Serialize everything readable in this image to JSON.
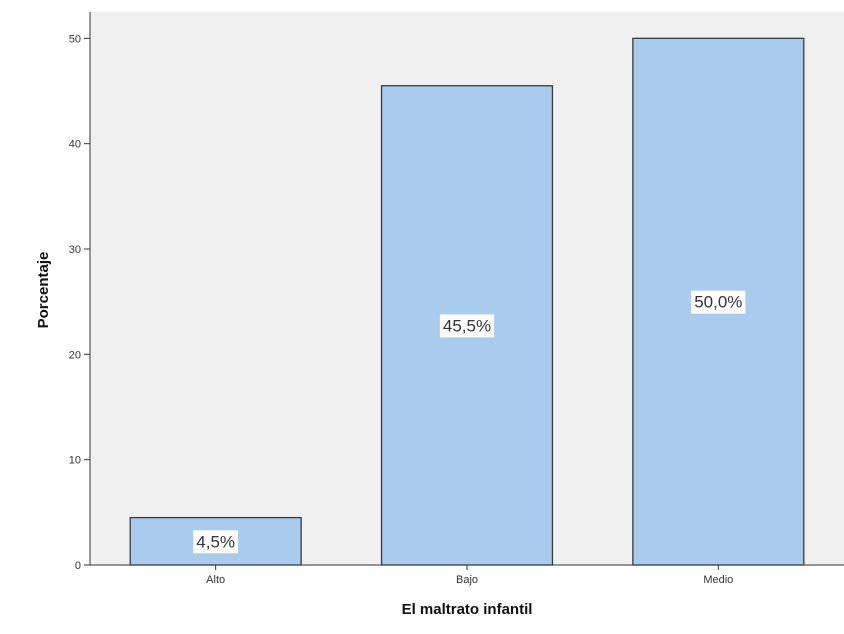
{
  "chart_data": {
    "type": "bar",
    "title": "",
    "xlabel": "El maltrato infantil",
    "ylabel": "Porcentaje",
    "categories": [
      "Alto",
      "Bajo",
      "Medio"
    ],
    "values": [
      4.5,
      45.5,
      50.0
    ],
    "data_labels": [
      "4,5%",
      "45,5%",
      "50,0%"
    ],
    "ylim": [
      0,
      52.5
    ],
    "yticks": [
      0,
      10,
      20,
      30,
      40,
      50
    ],
    "ytick_labels": [
      "0",
      "10",
      "20",
      "30",
      "40",
      "50"
    ],
    "grid": false,
    "legend": "none",
    "colors": {
      "bar_fill": "#a9cbee",
      "bar_stroke": "#3a3a3a",
      "plot_background": "#f0f0f0",
      "axis": "#333333"
    }
  }
}
